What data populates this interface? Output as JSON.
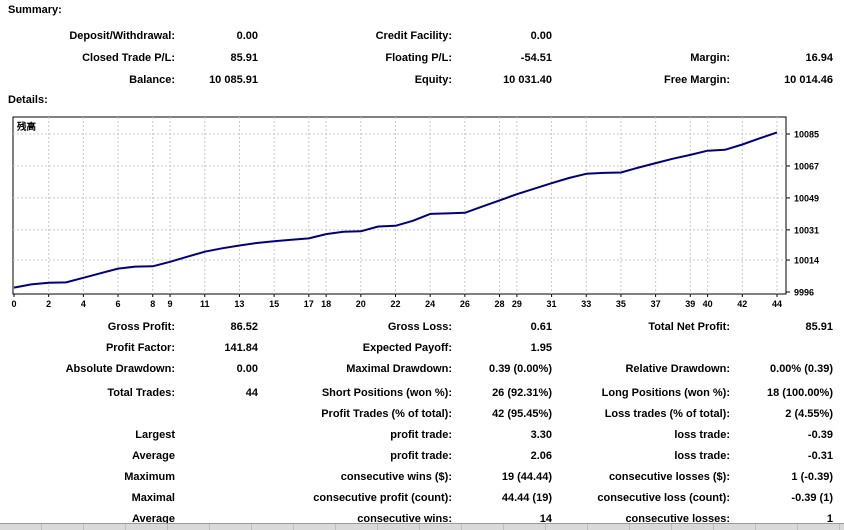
{
  "summary": {
    "heading": "Summary:",
    "rows": [
      [
        "Deposit/Withdrawal:",
        "0.00",
        "Credit Facility:",
        "0.00",
        "",
        ""
      ],
      [
        "Closed Trade P/L:",
        "85.91",
        "Floating P/L:",
        "-54.51",
        "Margin:",
        "16.94"
      ],
      [
        "Balance:",
        "10 085.91",
        "Equity:",
        "10 031.40",
        "Free Margin:",
        "10 014.46"
      ]
    ]
  },
  "details": {
    "heading": "Details:"
  },
  "stats": {
    "section1_rows": [
      [
        "Gross Profit:",
        "86.52",
        "Gross Loss:",
        "0.61",
        "Total Net Profit:",
        "85.91"
      ],
      [
        "Profit Factor:",
        "141.84",
        "Expected Payoff:",
        "1.95",
        "",
        ""
      ],
      [
        "Absolute Drawdown:",
        "0.00",
        "Maximal Drawdown:",
        "0.39 (0.00%)",
        "Relative Drawdown:",
        "0.00% (0.39)"
      ]
    ],
    "section2_rows": [
      [
        "Total Trades:",
        "44",
        "Short Positions (won %):",
        "26 (92.31%)",
        "Long Positions (won %):",
        "18 (100.00%)"
      ],
      [
        "",
        "",
        "Profit Trades (% of total):",
        "42 (95.45%)",
        "Loss trades (% of total):",
        "2 (4.55%)"
      ],
      [
        "Largest",
        "",
        "profit trade:",
        "3.30",
        "loss trade:",
        "-0.39"
      ],
      [
        "Average",
        "",
        "profit trade:",
        "2.06",
        "loss trade:",
        "-0.31"
      ],
      [
        "Maximum",
        "",
        "consecutive wins ($):",
        "19 (44.44)",
        "consecutive losses ($):",
        "1 (-0.39)"
      ],
      [
        "Maximal",
        "",
        "consecutive profit (count):",
        "44.44 (19)",
        "consecutive loss (count):",
        "-0.39 (1)"
      ],
      [
        "Average",
        "",
        "consecutive wins:",
        "14",
        "consecutive losses:",
        "1"
      ]
    ]
  },
  "chart_data": {
    "type": "line",
    "title": "残高",
    "legend_position": "top-left-inside",
    "grid": "dashed",
    "line_color": "#000080",
    "grid_color": "#c8c8c8",
    "border_color": "#000000",
    "xlim": [
      0,
      44
    ],
    "x_tick_labels": [
      0,
      2,
      4,
      6,
      8,
      9,
      11,
      13,
      15,
      17,
      18,
      20,
      22,
      24,
      26,
      28,
      29,
      31,
      33,
      35,
      37,
      39,
      40,
      42,
      44
    ],
    "y_tick_labels": [
      9996,
      10014,
      10031,
      10049,
      10067,
      10085
    ],
    "series": [
      {
        "name": "Balance",
        "values": [
          9998.5,
          10000.3,
          10001.2,
          10001.4,
          10004.0,
          10006.6,
          10009.2,
          10010.3,
          10010.5,
          10013.0,
          10015.9,
          10018.7,
          10020.6,
          10022.2,
          10023.6,
          10024.6,
          10025.4,
          10026.2,
          10028.6,
          10029.9,
          10030.2,
          10032.9,
          10033.3,
          10036.1,
          10040.0,
          10040.3,
          10040.6,
          10044.1,
          10047.6,
          10051.1,
          10054.2,
          10057.3,
          10060.2,
          10062.6,
          10063.1,
          10063.3,
          10066.1,
          10068.6,
          10071.1,
          10073.2,
          10075.6,
          10076.1,
          10079.1,
          10082.6,
          10085.91
        ]
      }
    ]
  }
}
